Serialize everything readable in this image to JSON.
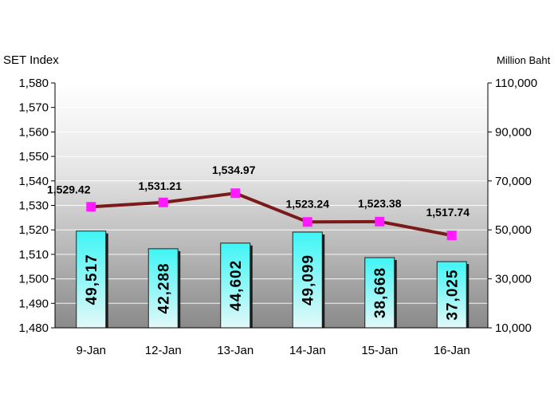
{
  "chart_data": {
    "type": "bar+line",
    "left_axis_title": "SET Index",
    "right_axis_title": "Million Baht",
    "categories": [
      "9-Jan",
      "12-Jan",
      "13-Jan",
      "14-Jan",
      "15-Jan",
      "16-Jan"
    ],
    "line_series": {
      "axis": "left",
      "values": [
        1529.42,
        1531.21,
        1534.97,
        1523.24,
        1523.38,
        1517.74
      ],
      "labels": [
        "1,529.42",
        "1,531.21",
        "1,534.97",
        "1,523.24",
        "1,523.38",
        "1,517.74"
      ]
    },
    "bar_series": {
      "axis": "right",
      "values": [
        49517,
        42288,
        44602,
        49099,
        38668,
        37025
      ],
      "labels": [
        "49,517",
        "42,288",
        "44,602",
        "49,099",
        "38,668",
        "37,025"
      ]
    },
    "left_ylim": [
      1480,
      1580
    ],
    "left_ticks": [
      "1,480",
      "1,490",
      "1,500",
      "1,510",
      "1,520",
      "1,530",
      "1,540",
      "1,550",
      "1,560",
      "1,570",
      "1,580"
    ],
    "right_ylim": [
      10000,
      110000
    ],
    "right_ticks": [
      "10,000",
      "30,000",
      "50,000",
      "70,000",
      "90,000",
      "110,000"
    ],
    "grid": true,
    "colors": {
      "bar_top": "#3ff5f5",
      "bar_bottom": "#d8f7f7",
      "line": "#7a1a1a",
      "marker": "#ff1aff",
      "plot_bg_top": "#ffffff",
      "plot_bg_bottom": "#8c8c8c"
    }
  }
}
